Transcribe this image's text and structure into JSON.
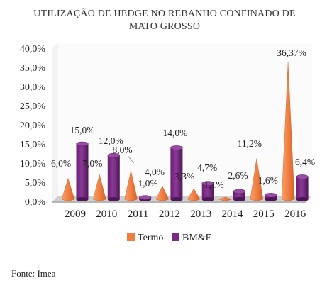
{
  "colors": {
    "termo": "#f07c3f",
    "termo_dark": "#c95a23",
    "bmf": "#7a2a85",
    "bmf_dark": "#4e1657",
    "floor": "#cfcfcf",
    "wall": "#f3f3f3",
    "grid": "#d9d9d9"
  },
  "source": "Fonte: Imea",
  "chart_data": {
    "type": "bar",
    "title_lines": [
      "UTILIZAÇÃO DE HEDGE NO REBANHO CONFINADO DE",
      "MATO GROSSO"
    ],
    "categories": [
      "2009",
      "2010",
      "2011",
      "2012",
      "2013",
      "2014",
      "2015",
      "2016"
    ],
    "series": [
      {
        "name": "Termo",
        "shape": "cone",
        "values": [
          6.0,
          7.0,
          8.0,
          4.0,
          3.3,
          1.1,
          11.2,
          36.37
        ],
        "labels": [
          "6,0%",
          "7,0%",
          "8,0%",
          "4,0%",
          "3,3%",
          "1,1%",
          "11,2%",
          "36,37%"
        ]
      },
      {
        "name": "BM&F",
        "shape": "cylinder",
        "values": [
          15.0,
          12.0,
          1.0,
          14.0,
          4.7,
          2.6,
          1.6,
          6.4
        ],
        "labels": [
          "15,0%",
          "12,0%",
          "1,0%",
          "14,0%",
          "4,7%",
          "2,6%",
          "1,6%",
          "6,4%"
        ]
      }
    ],
    "ylim": [
      0,
      40
    ],
    "yticks": [
      "0,0%",
      "5,0%",
      "10,0%",
      "15,0%",
      "20,0%",
      "25,0%",
      "30,0%",
      "35,0%",
      "40,0%"
    ],
    "legend": "bottom",
    "grid": false
  }
}
